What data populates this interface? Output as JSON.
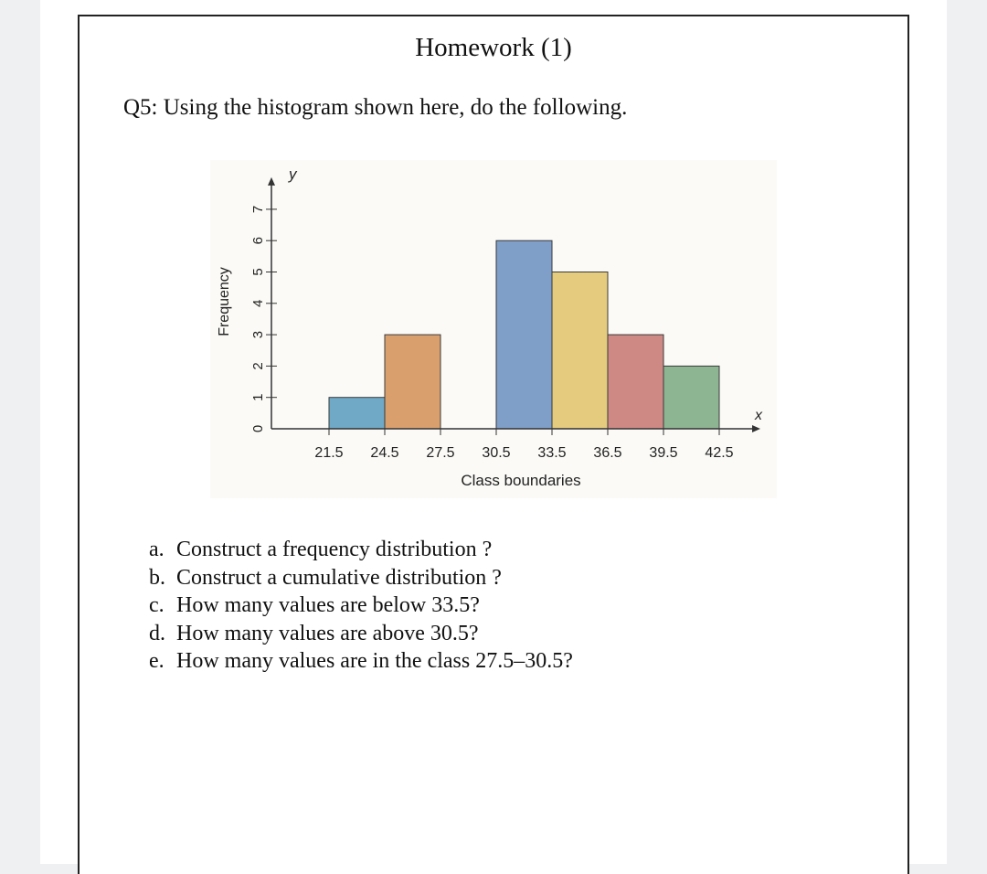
{
  "document": {
    "title": "Homework (1)",
    "question": "Q5: Using the histogram shown here, do the following.",
    "tasks": [
      {
        "letter": "a.",
        "text": "Construct a frequency distribution ?"
      },
      {
        "letter": "b.",
        "text": "Construct a cumulative distribution ?"
      },
      {
        "letter": "c.",
        "text": "How many values are below 33.5?"
      },
      {
        "letter": "d.",
        "text": "How many values are above 30.5?"
      },
      {
        "letter": "e.",
        "text": "How many values are in the class 27.5–30.5?"
      }
    ]
  },
  "chart_data": {
    "type": "bar",
    "xlabel": "Class boundaries",
    "ylabel": "Frequency",
    "x_axis_symbol": "x",
    "y_axis_symbol": "y",
    "boundaries": [
      21.5,
      24.5,
      27.5,
      30.5,
      33.5,
      36.5,
      39.5,
      42.5
    ],
    "tick_labels": [
      "21.5",
      "24.5",
      "27.5",
      "30.5",
      "33.5",
      "36.5",
      "39.5",
      "42.5"
    ],
    "values": [
      1,
      3,
      0,
      6,
      5,
      3,
      2
    ],
    "colors": [
      "#6fa9c6",
      "#d9a06e",
      "#ffffff",
      "#7f9fc8",
      "#e4cb7e",
      "#cf8985",
      "#8db592"
    ],
    "yticks": [
      0,
      1,
      2,
      3,
      4,
      5,
      6,
      7
    ],
    "ylim": [
      0,
      7
    ],
    "grid": false
  }
}
